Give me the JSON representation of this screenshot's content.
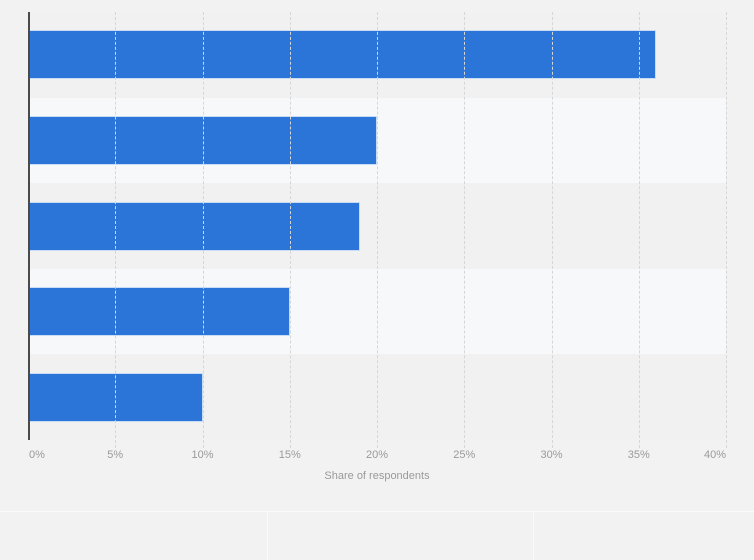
{
  "chart_data": {
    "type": "bar",
    "orientation": "horizontal",
    "title": "",
    "categories": [
      "",
      "",
      "",
      "",
      ""
    ],
    "values": [
      36,
      20,
      19,
      15,
      10
    ],
    "value_suffix": "%",
    "xlabel": "Share of respondents",
    "ylabel": "",
    "xlim": [
      0,
      40
    ],
    "x_tick_step": 5,
    "x_ticks": [
      "0%",
      "5%",
      "10%",
      "15%",
      "20%",
      "25%",
      "30%",
      "35%",
      "40%"
    ],
    "grid": true,
    "gridline_style": "dashed-vertical",
    "legend": false,
    "data_labels": false,
    "bar_color": "#2b75d8",
    "bar_border_color": "#ffffff",
    "background_color": "#f2f2f2",
    "stripe_colors": [
      "#f1f1f2",
      "#f7f8f9"
    ],
    "axis_line_color": "#4a4a4a",
    "gridline_color": "#d6d6d6",
    "tick_label_color": "#9a9a9a",
    "axis_title_color": "#9a9a9a"
  }
}
